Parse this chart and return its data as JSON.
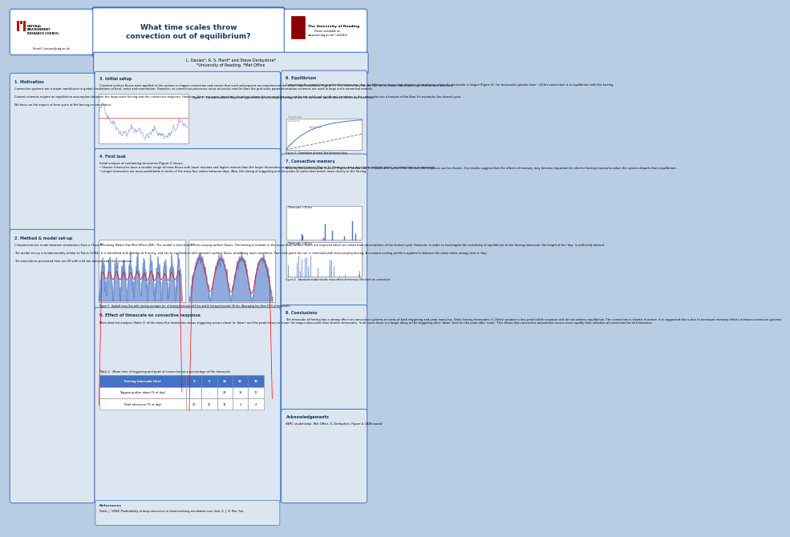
{
  "title": "What time scales throw\nconvection out of equilibrium?",
  "authors": "L. Davies*, R. S. Plant* and Steve Derbyshire*\n*University of Reading, *Met Office",
  "bg_color": "#b8cce4",
  "header_bg": "#4472c4",
  "box_bg": "#dce6f1",
  "box_outline": "#4472c4",
  "title_color": "#17375e",
  "section_title_color": "#17375e",
  "email": "Email: l.davies@rdg.ac.uk",
  "poster_url": "Poster available at:\nwww.met.rdg.ac.uk/~swr04ld",
  "sections": {
    "1_motivation": {
      "title": "1. Motivation",
      "text": "Convective systems are a major contributor to global circulations of heat, mass and momentum. However, as convective processes occur on scales smaller than the grid scale parameterisation schemes are used in large scale numerical models.\n\nCurrent schemes require an equilibrium assumption between the large-scale forcing and the convective response. However, there are many important situations where this assumption may not be not valid and significant variations in the convection are a feature of the flow; for example, the diurnal cycle.\n\nWe focus on the impact of time-scale of the forcing on convection."
    },
    "2_method": {
      "title": "2. Method & model set-up",
      "text": "Comparisons are made between simulations from a Cloud Resolving Model (the Met Office LEM). The model is forced with time-varying surface fluxes. The forcing is realistic in the sense that surface fluxes are imposed which are taken from observations of the diurnal cycle. However, in order to investigate the sensitivity of equilibrium to the forcing timescale, the length of the ‘day’ is artificially altered.\n\nThe model set-up is fundamentally similar to Patch (2004); it is initialised with profiles of θ and q, and run to equilibrium with constant surface fluxes simulating noon conditions. From this point the run is continued with time-varying forcing. A constant cooling profile is applied to balance the moist static energy over a ‘day’.\n\nThe simulations presented here are 2D with a 64 km domain and 1km resolution."
    },
    "3_initial_setup": {
      "title": "3. Initial setup",
      "text": "Constant surface fluxes were applied to the system to trigger convection and ensure that each subsequent run experienced the same initial conditions (Figure 1). This control was run for 240 hrs to ensure convective equilibrium was achieved.",
      "fig_caption": "Figure 1   Constant surface fluxes are superseded by time-varying forcings where the timescale can be altered, 24 hrs was used here."
    },
    "4_first_look": {
      "title": "4. First look",
      "text": "Initial analysis of contrasting timeseries (Figure 2) shows:\n• Shorter timescales have a smaller range of mass fluxes with lower maxima and higher minima than the larger timescales or with constant forcing (Figure 1). However some days have multiple peaks or convection is suppressed.\n• Longer timescales are more predictable in terms of the mass flux values between days. Also, the timing of triggering and the peaks of convection match more closely to the forcing.",
      "fig_caption": "Figure 2   Updraft mass flux with running averages for: a) forcing timescale of 6 hrs and b) forcing timescale 36 hrs. (Averaging less than 10 % of timescale)."
    },
    "5_effect": {
      "title": "5. Effect of timescale on convective response",
      "text": "More detailed analysis (Table 1) of the mass flux timeseries shows triggering occurs closer to ‘dawn’ and the peak closer to ‘noon’ for longer timescales than shorter timescales. In all cases there is a larger delay in the triggering after ‘dawn’ than for the peak after ‘noon’. This shows that convective adjustment occurs more rapidly than initiation of convection for all timescales.",
      "table_caption": "Table 1   Mean time of triggering and peak of convection as a percentage of the timescale.",
      "table_headers": [
        "Forcing timescale (hrs)",
        "3",
        "6",
        "12",
        "24",
        "36"
      ],
      "table_row1": [
        "Triggering after dawn (% of day)",
        "-",
        "-",
        "24",
        "16",
        "10"
      ],
      "table_row2": [
        "Peak afternoon (% of day)",
        "20",
        "21",
        "14",
        "2",
        "4"
      ]
    },
    "6_equilibrium": {
      "title": "6. Equilibrium",
      "text": "Comparing the convective response between one ‘day’ and the next shows high degrees of correlation when the timescale is longer (Figure 3). For timescales greater than ~24 hrs convection is in equilibrium with the forcing.",
      "fig_caption": "Figure 3   Correlation of mass flux between days."
    },
    "7_convective_memory": {
      "title": "7. Convective memory",
      "text": "Work by Derbyshire (pers. comm.) (Figure 4) shows that if a convective system has memory the response can be chaotic. Our results suggest that the effects of memory may become important for shorter forcing timescales when the system departs from equilibrium.",
      "fig_caption": "Figure 4   Idealised model results show effect of memory (life time) on convection."
    },
    "8_conclusions": {
      "title": "8. Conclusions",
      "text": "The timescale of forcing has a strong effect on convective systems in terms of both triggering and peak mass flux. Short forcing timescales (< 24hrs) produce a less predictable response and do not achieve equilibrium. The convection is chaotic in nature. It is suggested this is due to increased memory effects in these convective systems."
    },
    "references": {
      "title": "References",
      "text": "Patch, J. (2004) Predictability of deep convection in cloud-resolving simulations over land. Q. J. R. Met. Soc."
    },
    "acknowledgements": {
      "title": "Acknowledgements",
      "text": "NERC studentship, Met Office, S. Derbyshire, Figure & CASE award"
    }
  }
}
